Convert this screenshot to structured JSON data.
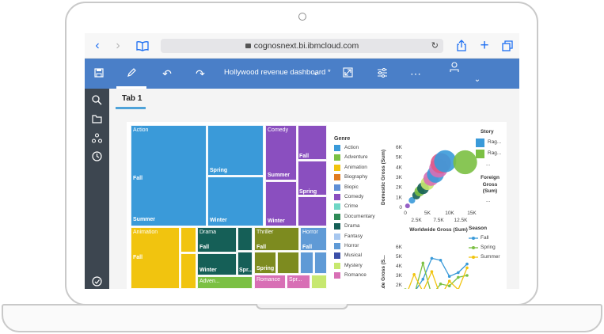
{
  "browser": {
    "url": "cognosnext.bi.ibmcloud.com",
    "icons": [
      "back-icon",
      "forward-icon",
      "bookmarks-icon",
      "lock-icon",
      "reload-icon",
      "share-icon",
      "new-tab-icon",
      "tabs-icon"
    ]
  },
  "toolbar": {
    "dashboard_title": "Hollywood revenue dashboard *",
    "accent": "#4a7fc8"
  },
  "tab": {
    "label": "Tab 1"
  },
  "treemap": {
    "cells": [
      {
        "name": "action",
        "label": "Action",
        "color": "#3a9ad9"
      },
      {
        "name": "action-fall",
        "label": "Fall",
        "color": "#3a9ad9"
      },
      {
        "name": "action-spring",
        "label": "Spring",
        "color": "#3a9ad9"
      },
      {
        "name": "action-summer",
        "label": "Summer",
        "color": "#3a9ad9"
      },
      {
        "name": "action-winter",
        "label": "Winter",
        "color": "#3a9ad9"
      },
      {
        "name": "comedy",
        "label": "Comedy",
        "color": "#8a4fbf"
      },
      {
        "name": "comedy-summer",
        "label": "Summer",
        "color": "#8a4fbf"
      },
      {
        "name": "comedy-fall",
        "label": "Fall",
        "color": "#8a4fbf"
      },
      {
        "name": "comedy-spring",
        "label": "Spring",
        "color": "#8a4fbf"
      },
      {
        "name": "comedy-winter",
        "label": "Winter",
        "color": "#8a4fbf"
      },
      {
        "name": "animation",
        "label": "Animation",
        "color": "#f1c40f"
      },
      {
        "name": "animation-fall",
        "label": "Fall",
        "color": "#f1c40f"
      },
      {
        "name": "drama",
        "label": "Drama",
        "color": "#155f57"
      },
      {
        "name": "drama-fall",
        "label": "Fall",
        "color": "#155f57"
      },
      {
        "name": "drama-winter",
        "label": "Winter",
        "color": "#155f57"
      },
      {
        "name": "drama-spring",
        "label": "Spr...",
        "color": "#155f57"
      },
      {
        "name": "thriller",
        "label": "Thriller",
        "color": "#7d8b1f"
      },
      {
        "name": "thriller-fall",
        "label": "Fall",
        "color": "#7d8b1f"
      },
      {
        "name": "thriller-spring",
        "label": "Spring",
        "color": "#7d8b1f"
      },
      {
        "name": "horror",
        "label": "Horror",
        "color": "#5f9ad6"
      },
      {
        "name": "horror-fall",
        "label": "Fall",
        "color": "#5f9ad6"
      },
      {
        "name": "adventure",
        "label": "Adven...",
        "color": "#7bc043"
      },
      {
        "name": "romance",
        "label": "Romance",
        "color": "#d86fb5"
      },
      {
        "name": "spring-small",
        "label": "Spr...",
        "color": "#d86fb5"
      }
    ]
  },
  "genre_legend": {
    "title": "Genre",
    "items": [
      {
        "label": "Action",
        "color": "#3a9ad9"
      },
      {
        "label": "Adventure",
        "color": "#7bc043"
      },
      {
        "label": "Animation",
        "color": "#f1c40f"
      },
      {
        "label": "Biography",
        "color": "#e07b1f"
      },
      {
        "label": "Biopic",
        "color": "#5f8fd6"
      },
      {
        "label": "Comedy",
        "color": "#8a4fbf"
      },
      {
        "label": "Crime",
        "color": "#6fd6c5"
      },
      {
        "label": "Documentary",
        "color": "#2e8b57"
      },
      {
        "label": "Drama",
        "color": "#155f57"
      },
      {
        "label": "Fantasy",
        "color": "#a7c7ef"
      },
      {
        "label": "Horror",
        "color": "#5f9ad6"
      },
      {
        "label": "Musical",
        "color": "#3b4fa8"
      },
      {
        "label": "Mystery",
        "color": "#c7e86f"
      },
      {
        "label": "Romance",
        "color": "#d86fb5"
      }
    ]
  },
  "chart_data": [
    {
      "type": "scatter",
      "xlabel": "Worldwide Gross (Sum)",
      "ylabel": "Domestic Gross (Sum)",
      "x_ticks": [
        "0",
        "2.5K",
        "5K",
        "7.5K",
        "10K",
        "12.5K",
        "15K"
      ],
      "y_ticks": [
        "0",
        "1K",
        "2K",
        "3K",
        "4K",
        "5K",
        "6K"
      ],
      "xlim": [
        0,
        15000
      ],
      "ylim": [
        0,
        6000
      ],
      "points": [
        {
          "x": 500,
          "y": 150,
          "color": "#8a4fbf"
        },
        {
          "x": 1500,
          "y": 700,
          "color": "#3a9ad9"
        },
        {
          "x": 2500,
          "y": 1200,
          "color": "#155f57"
        },
        {
          "x": 3200,
          "y": 1600,
          "color": "#7bc043"
        },
        {
          "x": 4000,
          "y": 1900,
          "color": "#155f57"
        },
        {
          "x": 5000,
          "y": 2400,
          "color": "#c7e86f"
        },
        {
          "x": 5800,
          "y": 2900,
          "color": "#d86fb5"
        },
        {
          "x": 6800,
          "y": 3300,
          "color": "#3a9ad9"
        },
        {
          "x": 7500,
          "y": 3900,
          "color": "#d86fb5"
        },
        {
          "x": 8000,
          "y": 4400,
          "color": "#e05a8a"
        },
        {
          "x": 9000,
          "y": 4600,
          "color": "#3a9ad9"
        },
        {
          "x": 13500,
          "y": 4500,
          "color": "#7bc043"
        }
      ],
      "legend_title": "Story",
      "legend_items": [
        {
          "label": "Rag...",
          "color": "#3a9ad9"
        },
        {
          "label": "Rag...",
          "color": "#7bc043"
        }
      ],
      "legend_more": "...",
      "size_title": "Foreign Gross (Sum)",
      "size_more": "..."
    },
    {
      "type": "line",
      "ylabel": "...de Gross (S...",
      "y_ticks": [
        "0",
        "1K",
        "2K",
        "3K",
        "4K",
        "5K",
        "6K"
      ],
      "ylim": [
        0,
        6000
      ],
      "legend_title": "Season",
      "series": [
        {
          "name": "Fall",
          "color": "#3a9ad9",
          "values": [
            400,
            1200,
            2600,
            4800,
            4600,
            2900,
            3300,
            4200
          ]
        },
        {
          "name": "Spring",
          "color": "#7bc043",
          "values": [
            1500,
            900,
            4300,
            900,
            2100,
            1900,
            2800,
            3000
          ]
        },
        {
          "name": "Summer",
          "color": "#f1c40f",
          "values": [
            700,
            3100,
            1300,
            3400,
            800,
            2400,
            1500,
            3800
          ]
        }
      ]
    }
  ]
}
